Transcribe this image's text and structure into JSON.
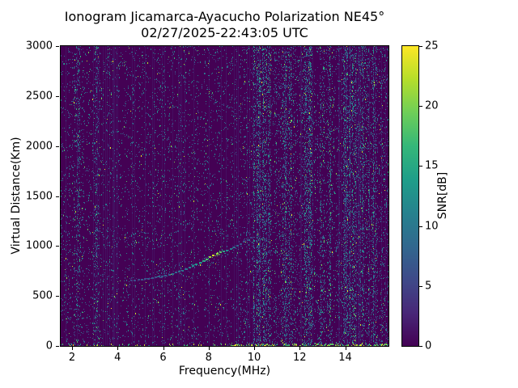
{
  "chart_data": {
    "type": "heatmap",
    "title": "Ionogram Jicamarca-Ayacucho Polarization NE45°",
    "subtitle": "02/27/2025-22:43:05 UTC",
    "xlabel": "Frequency(MHz)",
    "ylabel": "Virtual Distance(Km)",
    "xlim": [
      1.5,
      15.9
    ],
    "ylim": [
      0,
      3000
    ],
    "xticks": [
      2,
      4,
      6,
      8,
      10,
      12,
      14
    ],
    "yticks": [
      0,
      500,
      1000,
      1500,
      2000,
      2500,
      3000
    ],
    "grid": false,
    "background_snr_db": 0,
    "colorbar": {
      "label": "SNR[dB]",
      "range": [
        0,
        25
      ],
      "ticks": [
        0,
        5,
        10,
        15,
        20,
        25
      ],
      "colormap": "viridis",
      "colormap_stops": [
        "#440154",
        "#482878",
        "#3e4a89",
        "#31688e",
        "#26828e",
        "#1f9e89",
        "#35b779",
        "#6ece58",
        "#b5de2b",
        "#fde725"
      ]
    },
    "noise": {
      "description": "sparse speckle noise over dark-purple (0 dB) background with denser vertical interference bands, mainly above 9.5 MHz, and a bright speckle band along 0 km",
      "seed": 42,
      "base_density": 0.045,
      "busy_above_mhz": 9.5,
      "busy_multiplier": 1.6,
      "stripe_multiplier": 2.8,
      "stripes_mhz": [
        [
          2.05,
          2.35
        ],
        [
          2.95,
          3.15
        ],
        [
          9.9,
          10.7
        ],
        [
          11.2,
          11.7
        ],
        [
          12.1,
          12.55
        ],
        [
          12.85,
          13.35
        ],
        [
          13.9,
          14.45
        ],
        [
          14.65,
          15.35
        ]
      ],
      "streak_probability": 0.18,
      "bottom_band": {
        "dense_above_mhz": 9.0,
        "dense_prob": 0.55,
        "sparse_prob": 0.16
      }
    },
    "echo_trace": {
      "description": "Ionospheric F-region echo trace rising from ~660 km at 4.6 MHz to ~1080 km near 9.9 MHz; brightest (20-23 dB) near 8.0-8.4 MHz around 870-920 km",
      "points_format": [
        "frequency_mhz",
        "virtual_distance_km",
        "snr_db"
      ],
      "points": [
        [
          4.6,
          655,
          5
        ],
        [
          4.75,
          658,
          6
        ],
        [
          4.9,
          662,
          6
        ],
        [
          5.05,
          666,
          7
        ],
        [
          5.2,
          670,
          6
        ],
        [
          5.35,
          675,
          7
        ],
        [
          5.5,
          680,
          7
        ],
        [
          5.65,
          686,
          6
        ],
        [
          5.8,
          692,
          8
        ],
        [
          5.95,
          699,
          7
        ],
        [
          6.1,
          706,
          8
        ],
        [
          6.25,
          714,
          8
        ],
        [
          6.4,
          723,
          9
        ],
        [
          6.55,
          733,
          8
        ],
        [
          6.7,
          744,
          9
        ],
        [
          6.85,
          756,
          10
        ],
        [
          7.0,
          769,
          10
        ],
        [
          7.15,
          783,
          11
        ],
        [
          7.3,
          798,
          12
        ],
        [
          7.45,
          814,
          13
        ],
        [
          7.6,
          831,
          14
        ],
        [
          7.75,
          849,
          16
        ],
        [
          7.9,
          868,
          18
        ],
        [
          8.05,
          888,
          21
        ],
        [
          8.2,
          906,
          23
        ],
        [
          8.35,
          922,
          21
        ],
        [
          8.5,
          936,
          18
        ],
        [
          8.65,
          948,
          15
        ],
        [
          8.8,
          958,
          12
        ],
        [
          8.95,
          970,
          10
        ],
        [
          9.1,
          985,
          9
        ],
        [
          9.25,
          1002,
          8
        ],
        [
          9.4,
          1020,
          7
        ],
        [
          9.55,
          1040,
          6
        ],
        [
          9.7,
          1062,
          6
        ],
        [
          9.85,
          1085,
          5
        ]
      ]
    }
  }
}
